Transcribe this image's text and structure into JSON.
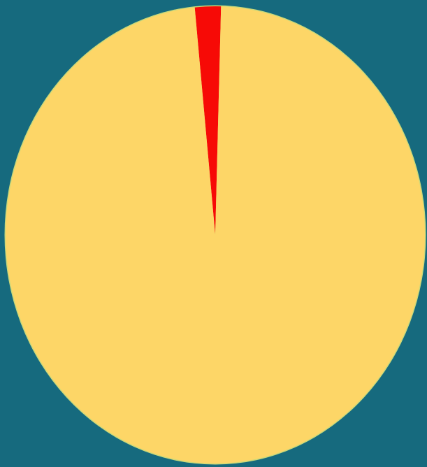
{
  "colors": {
    "background": "#166a7e",
    "major_slice": "#fdd667",
    "minor_slice": "#f70a06",
    "outline": "#c9d97a"
  },
  "chart_data": {
    "type": "pie",
    "start": "top",
    "direction": "clockwise",
    "slices": [
      {
        "value": 2,
        "color": "#f70a06"
      },
      {
        "value": 98,
        "color": "#fdd667"
      }
    ]
  }
}
